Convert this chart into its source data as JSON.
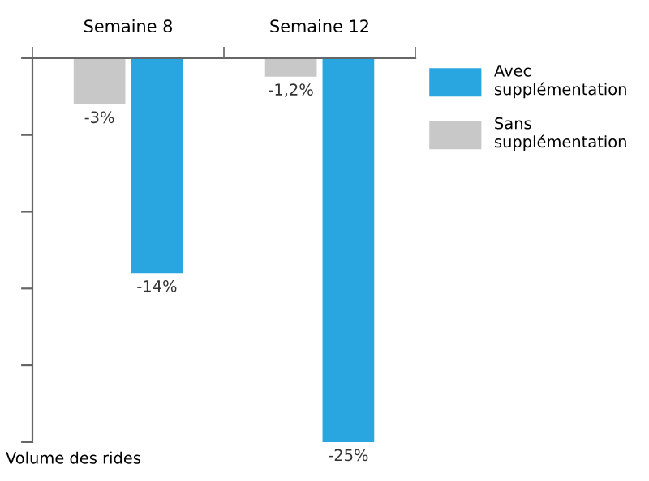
{
  "chart_data": {
    "type": "bar",
    "ylabel": "Volume des rides",
    "categories": [
      "Semaine 8",
      "Semaine 12"
    ],
    "series": [
      {
        "name": "Avec supplémentation",
        "color": "#29a6df",
        "values": [
          -14,
          -25
        ],
        "value_labels": [
          "-14%",
          "-25%"
        ]
      },
      {
        "name": "Sans supplémentation",
        "color": "#c8c8c8",
        "values": [
          -3,
          -1.2
        ],
        "value_labels": [
          "-3%",
          "-1,2%"
        ]
      }
    ],
    "ylim": [
      -25,
      0
    ],
    "yticks": [
      {
        "value": 0,
        "label": null
      },
      {
        "value": -5,
        "label": null
      },
      {
        "value": -10,
        "label": null
      },
      {
        "value": -15,
        "label": null
      },
      {
        "value": -20,
        "label": null
      },
      {
        "value": -25,
        "label": null
      }
    ],
    "tick_labels": "x",
    "grid": false,
    "legend": "top right"
  }
}
